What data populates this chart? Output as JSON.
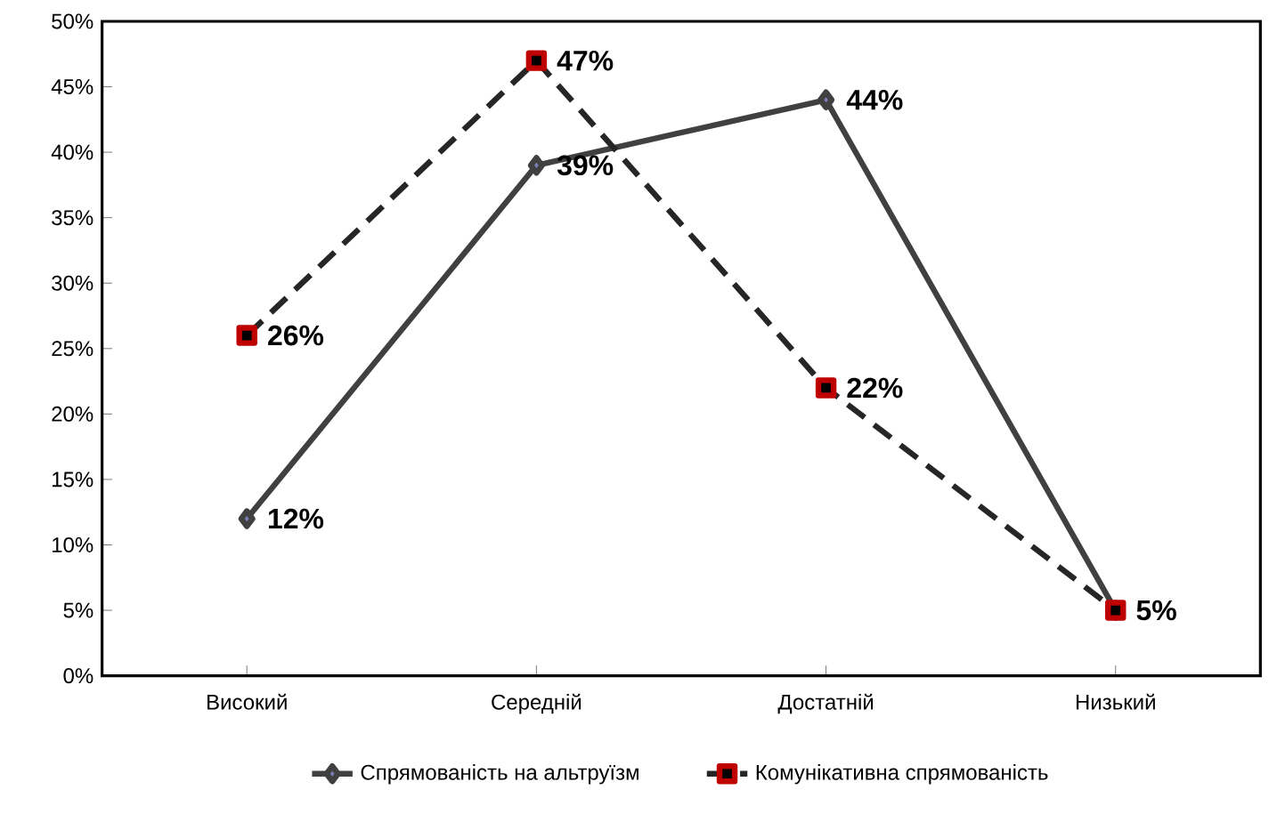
{
  "chart_data": {
    "type": "line",
    "categories": [
      "Високий",
      "Середній",
      "Достатній",
      "Низький"
    ],
    "series": [
      {
        "name": "Спрямованість на альтруїзм",
        "color": "#404040",
        "marker": "diamond",
        "line_style": "solid",
        "values": [
          12,
          39,
          44,
          5
        ],
        "value_labels": [
          "12%",
          "39%",
          "44%",
          null
        ]
      },
      {
        "name": "Комунікативна спрямованість",
        "color": "#262626",
        "marker": "square",
        "line_style": "dashed",
        "values": [
          26,
          47,
          22,
          5
        ],
        "value_labels": [
          "26%",
          "47%",
          "22%",
          "5%"
        ]
      }
    ],
    "ylim": [
      0,
      50
    ],
    "yticks": [
      {
        "value": 0,
        "label": "0%"
      },
      {
        "value": 5,
        "label": "5%"
      },
      {
        "value": 10,
        "label": "10%"
      },
      {
        "value": 15,
        "label": "15%"
      },
      {
        "value": 20,
        "label": "20%"
      },
      {
        "value": 25,
        "label": "25%"
      },
      {
        "value": 30,
        "label": "30%"
      },
      {
        "value": 35,
        "label": "35%"
      },
      {
        "value": 40,
        "label": "40%"
      },
      {
        "value": 45,
        "label": "45%"
      },
      {
        "value": 50,
        "label": "50%"
      }
    ],
    "grid": false,
    "legend": "bottom"
  }
}
